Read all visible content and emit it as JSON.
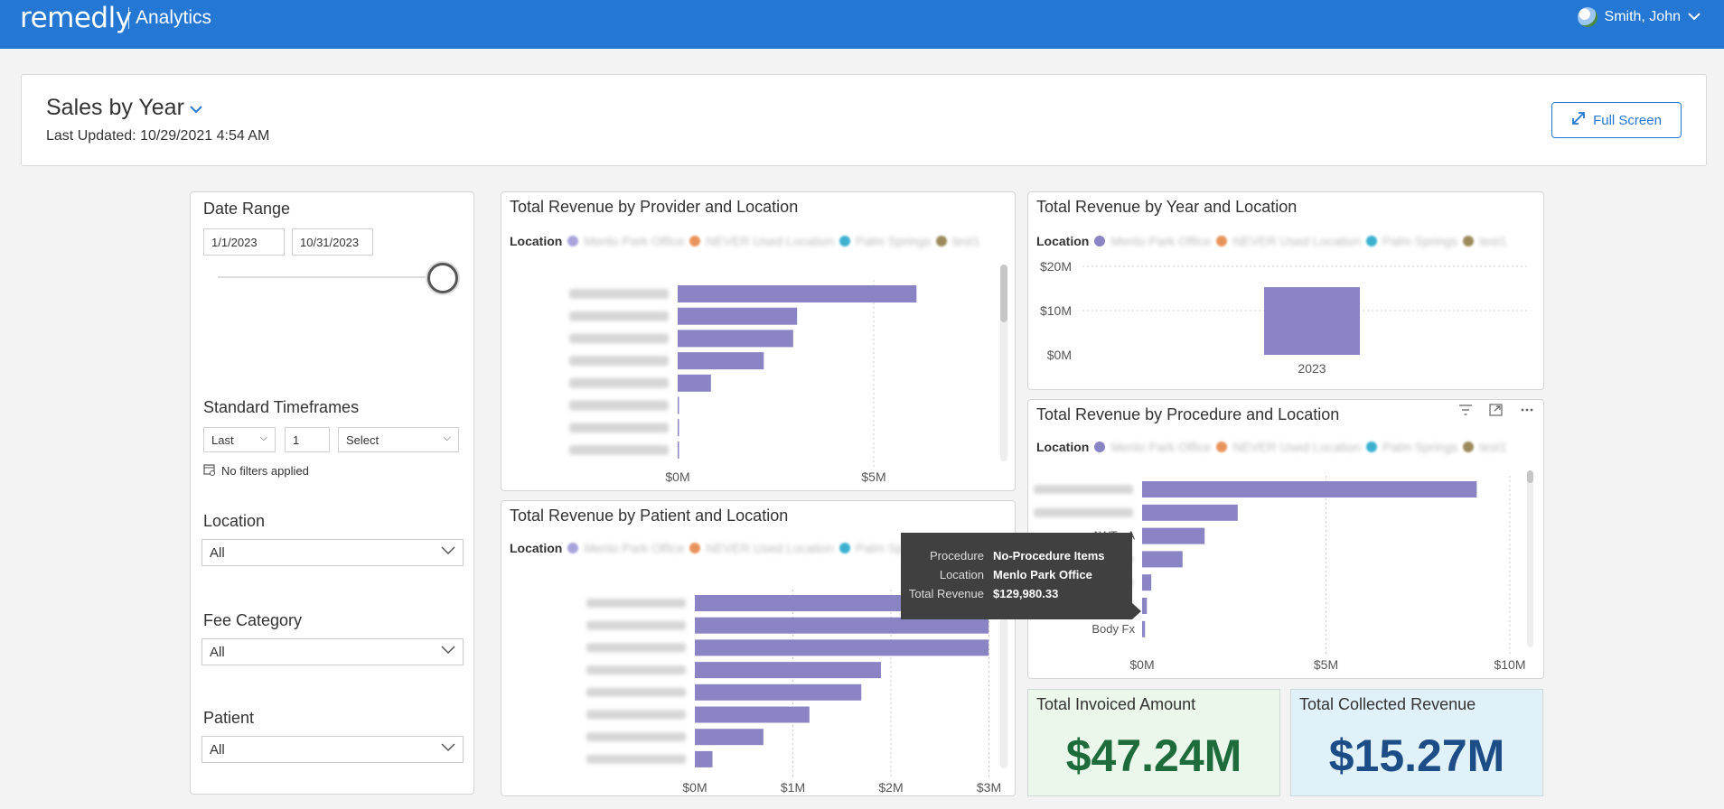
{
  "topbar": {
    "brand": "remedly",
    "product": "Analytics",
    "user": "Smith, John"
  },
  "header": {
    "title": "Sales by Year",
    "last_updated": "Last Updated: 10/29/2021 4:54 AM",
    "fullscreen_label": "Full Screen"
  },
  "filters": {
    "date_range_label": "Date Range",
    "date_from": "1/1/2023",
    "date_to": "10/31/2023",
    "standard_timeframes_label": "Standard Timeframes",
    "tf_period": "Last",
    "tf_count": "1",
    "tf_unit": "Select",
    "no_filters": "No filters applied",
    "location_label": "Location",
    "location_value": "All",
    "fee_category_label": "Fee Category",
    "fee_category_value": "All",
    "patient_label": "Patient",
    "patient_value": "All"
  },
  "legend": {
    "label": "Location"
  },
  "charts": {
    "provider": {
      "title": "Total Revenue by Provider and Location"
    },
    "year": {
      "title": "Total Revenue by Year and Location"
    },
    "patient": {
      "title": "Total Revenue by Patient and Location"
    },
    "procedure": {
      "title": "Total Revenue by Procedure and Location"
    }
  },
  "kpis": {
    "invoiced": {
      "title": "Total Invoiced Amount",
      "value": "$47.24M",
      "color": "#1e6b3c",
      "bg": "#eaf7ea"
    },
    "collected": {
      "title": "Total Collected Revenue",
      "value": "$15.27M",
      "color": "#1c4d86",
      "bg": "#e1f1fa"
    }
  },
  "tooltip": {
    "procedure_key": "Procedure",
    "procedure_val": "No-Procedure Items",
    "location_key": "Location",
    "location_val": "Menlo Park Office",
    "revenue_key": "Total Revenue",
    "revenue_val": "$129,980.33"
  },
  "chart_data": [
    {
      "type": "bar",
      "orientation": "horizontal",
      "title": "Total Revenue by Provider and Location",
      "categories": [
        "",
        "",
        "",
        "",
        "",
        "",
        "",
        ""
      ],
      "values": [
        6100000,
        3050000,
        2950000,
        2200000,
        850000,
        0,
        0,
        0
      ],
      "xticks": [
        "$0M",
        "$5M"
      ],
      "xlim": [
        0,
        9000000
      ],
      "bar_color": "#8b84c4"
    },
    {
      "type": "bar",
      "title": "Total Revenue by Year and Location",
      "categories": [
        "2023"
      ],
      "values": [
        15300000
      ],
      "yticks": [
        "$0M",
        "$10M",
        "$20M"
      ],
      "ylim": [
        0,
        20000000
      ],
      "bar_color": "#8b84c4"
    },
    {
      "type": "bar",
      "orientation": "horizontal",
      "title": "Total Revenue by Patient and Location",
      "categories": [
        "",
        "",
        "",
        "",
        "",
        "",
        "",
        ""
      ],
      "values": [
        2950000,
        3000000,
        3000000,
        1900000,
        1700000,
        1170000,
        700000,
        180000
      ],
      "xticks": [
        "$0M",
        "$1M",
        "$2M",
        "$3M"
      ],
      "xlim": [
        0,
        3100000
      ],
      "bar_color": "#8b84c4"
    },
    {
      "type": "bar",
      "orientation": "horizontal",
      "title": "Total Revenue by Procedure and Location",
      "categories": [
        "",
        "",
        "AWT - A",
        "",
        "",
        "",
        "Body Fx"
      ],
      "values": [
        9100000,
        2600000,
        1700000,
        1100000,
        250000,
        129980.33,
        80000
      ],
      "xticks": [
        "$0M",
        "$5M",
        "$10M"
      ],
      "xlim": [
        0,
        10000000
      ],
      "bar_color": "#8b84c4"
    }
  ]
}
